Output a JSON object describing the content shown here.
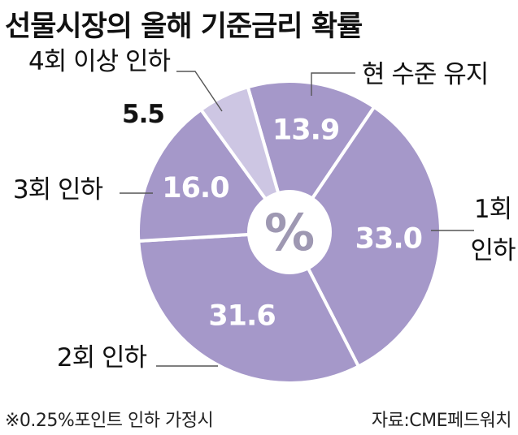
{
  "title": "선물시장의 올해 기준금리 확률",
  "center_label": "%",
  "footnote": "※0.25%포인트 인하 가정시",
  "source": "자료:CME페드워치",
  "colors": {
    "slice_main": "#a598c9",
    "slice_light": "#cdc6e3",
    "separator": "#ffffff",
    "center": "#ffffff",
    "center_text": "#9e98b2",
    "leader": "#555555",
    "text": "#111111"
  },
  "chart_data": {
    "type": "pie",
    "unit": "%",
    "slices": [
      {
        "label": "현 수준 유지",
        "value": 13.9,
        "value_text": "13.9"
      },
      {
        "label": "1회 인하",
        "value": 33.0,
        "value_text": "33.0"
      },
      {
        "label": "2회 인하",
        "value": 31.6,
        "value_text": "31.6"
      },
      {
        "label": "3회 인하",
        "value": 16.0,
        "value_text": "16.0"
      },
      {
        "label": "4회 이상 인하",
        "value": 5.5,
        "value_text": "5.5"
      }
    ]
  }
}
